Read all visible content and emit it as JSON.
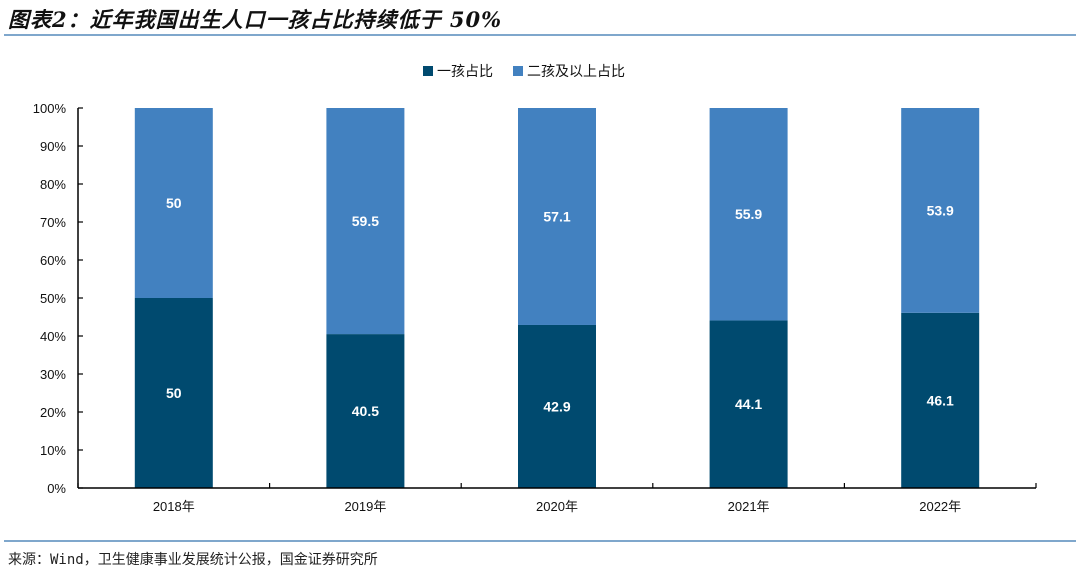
{
  "title": "图表2：近年我国出生人口一孩占比持续低于 50%",
  "source": "来源：Wind，卫生健康事业发展统计公报，国金证券研究所",
  "colors": {
    "first_child": "#004a6f",
    "second_plus": "#4281c0",
    "rule": "#7fa7cc"
  },
  "chart_data": {
    "type": "bar",
    "stacked": true,
    "categories": [
      "2018年",
      "2019年",
      "2020年",
      "2021年",
      "2022年"
    ],
    "series": [
      {
        "name": "一孩占比",
        "values": [
          50,
          40.5,
          42.9,
          44.1,
          46.1
        ]
      },
      {
        "name": "二孩及以上占比",
        "values": [
          50,
          59.5,
          57.1,
          55.9,
          53.9
        ]
      }
    ],
    "ylim": [
      0,
      100
    ],
    "yticks": [
      "0%",
      "10%",
      "20%",
      "30%",
      "40%",
      "50%",
      "60%",
      "70%",
      "80%",
      "90%",
      "100%"
    ],
    "legend_position": "top",
    "grid": false
  }
}
